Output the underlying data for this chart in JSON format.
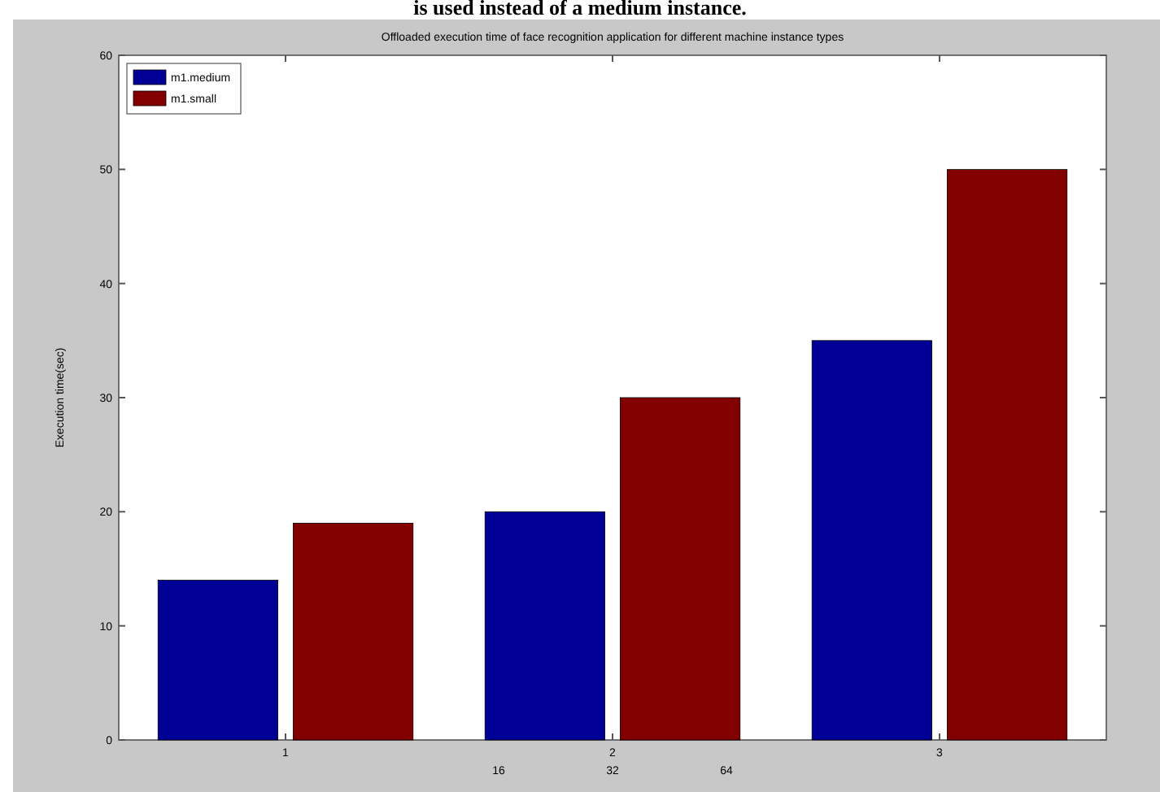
{
  "chart_data": {
    "type": "bar",
    "title": "Offloaded execution time of face recognition application for different machine instance types",
    "ylabel": "Execution time(sec)",
    "categories": [
      "1",
      "2",
      "3"
    ],
    "series": [
      {
        "name": "m1.medium",
        "color": "#000096",
        "values": [
          14,
          20,
          35
        ]
      },
      {
        "name": "m1.small",
        "color": "#820000",
        "values": [
          19,
          30,
          50
        ]
      }
    ],
    "ylim": [
      0,
      60
    ],
    "yticks": [
      0,
      10,
      20,
      30,
      40,
      50,
      60
    ],
    "legend": "top left",
    "annotations": [
      "is used instead of a medium instance.",
      "16",
      "32",
      "64"
    ]
  }
}
